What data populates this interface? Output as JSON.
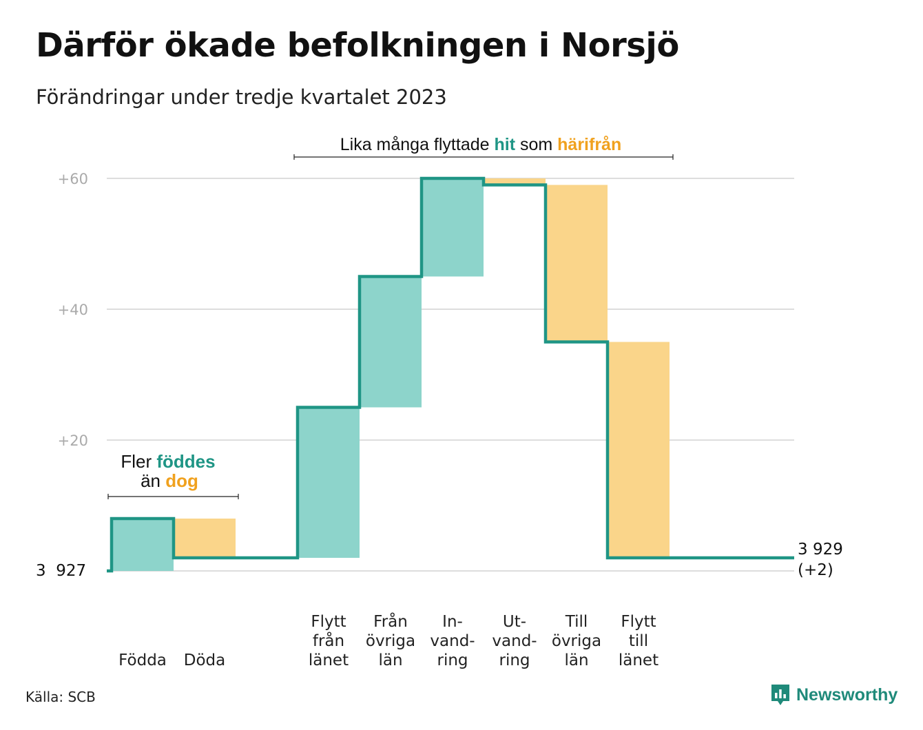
{
  "title": "Därför ökade befolkningen i Norsjö",
  "subtitle": "Förändringar under tredje kvartalet 2023",
  "source": "Källa: SCB",
  "brand": "Newsworthy",
  "colors": {
    "in": "#8dd4cb",
    "out": "#fad58a",
    "line": "#1f9585",
    "hit": "#1f9585",
    "harifran": "#f0a11e",
    "grid": "#dddddd",
    "tick": "#aaaaaa"
  },
  "chart_data": {
    "type": "waterfall",
    "title": "Därför ökade befolkningen i Norsjö",
    "subtitle": "Förändringar under tredje kvartalet 2023",
    "start_value": 3927,
    "start_label": "3  927",
    "end_label": [
      "3 929",
      "(+2)"
    ],
    "y_ticks": [
      {
        "value": 20,
        "label": "+20"
      },
      {
        "value": 40,
        "label": "+40"
      },
      {
        "value": 60,
        "label": "+60"
      }
    ],
    "ylim": [
      0,
      60
    ],
    "grid": true,
    "steps": [
      {
        "label": [
          "Födda"
        ],
        "change": 8,
        "kind": "in"
      },
      {
        "label": [
          "Döda"
        ],
        "change": -6,
        "kind": "out"
      },
      {
        "label": [],
        "change": 0,
        "kind": "gap"
      },
      {
        "label": [
          "Flytt",
          "från",
          "länet"
        ],
        "change": 23,
        "kind": "in"
      },
      {
        "label": [
          "Från",
          "övriga",
          "län"
        ],
        "change": 20,
        "kind": "in"
      },
      {
        "label": [
          "In-",
          "vand-",
          "ring"
        ],
        "change": 15,
        "kind": "in"
      },
      {
        "label": [
          "Ut-",
          "vand-",
          "ring"
        ],
        "change": -1,
        "kind": "out"
      },
      {
        "label": [
          "Till",
          "övriga",
          "län"
        ],
        "change": -24,
        "kind": "out"
      },
      {
        "label": [
          "Flytt",
          "till",
          "länet"
        ],
        "change": -33,
        "kind": "out"
      }
    ],
    "annotations": {
      "births": {
        "line1": "Fler ",
        "line1_hl": "föddes",
        "line2": "än ",
        "line2_hl": "dog"
      },
      "migration": {
        "text": "Lika många flyttade ",
        "hl1": "hit",
        "mid": " som ",
        "hl2": "härifrån"
      }
    }
  }
}
